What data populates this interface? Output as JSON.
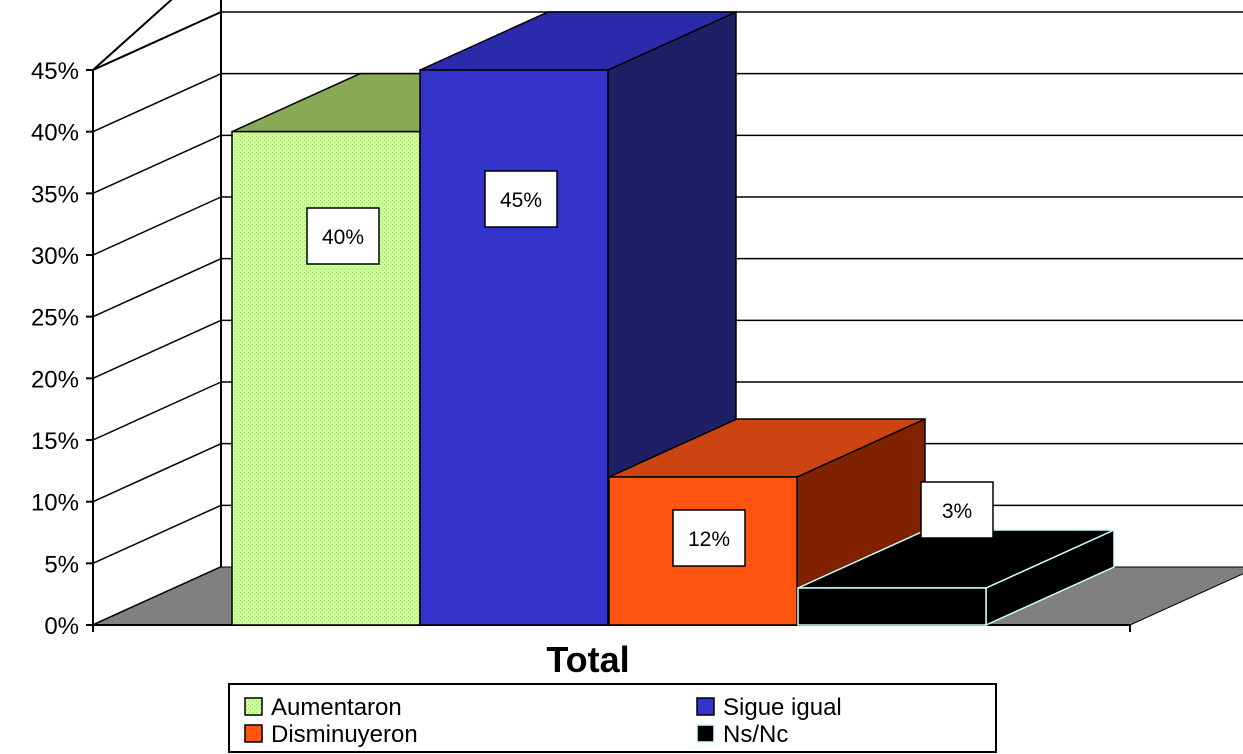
{
  "chart_data": {
    "type": "bar",
    "style": "3d-clustered",
    "categories": [
      "Total"
    ],
    "xlabel": "Total",
    "ylabel": "",
    "ylim": [
      0,
      45
    ],
    "yticks": [
      "0%",
      "5%",
      "10%",
      "15%",
      "20%",
      "25%",
      "30%",
      "35%",
      "40%",
      "45%"
    ],
    "grid": true,
    "legend_position": "bottom",
    "series": [
      {
        "name": "Aumentaron",
        "values": [
          40
        ],
        "label": "40%",
        "color": "#ccff99",
        "side_color": "#99cc66"
      },
      {
        "name": "Sigue igual",
        "values": [
          45
        ],
        "label": "45%",
        "color": "#3333cc",
        "side_color": "#1f1f66"
      },
      {
        "name": "Disminuyeron",
        "values": [
          12
        ],
        "label": "12%",
        "color": "#ff5511",
        "side_color": "#802200"
      },
      {
        "name": "Ns/Nc",
        "values": [
          3
        ],
        "label": "3%",
        "color": "#000000",
        "side_color": "#000000",
        "edge_color": "#ccffff"
      }
    ],
    "floor_color": "#808080"
  }
}
